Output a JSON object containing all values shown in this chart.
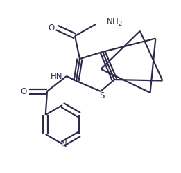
{
  "background_color": "#ffffff",
  "line_color": "#2c2c4a",
  "line_width": 1.6,
  "fig_width": 2.61,
  "fig_height": 2.5,
  "dpi": 100,
  "xlim": [
    0,
    261
  ],
  "ylim": [
    0,
    250
  ]
}
